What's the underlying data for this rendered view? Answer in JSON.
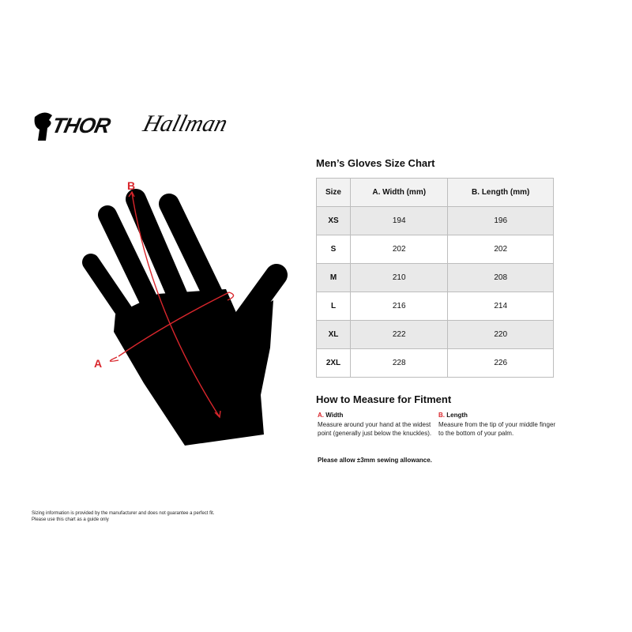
{
  "logos": {
    "brand1": "THOR",
    "brand2": "Hallman"
  },
  "diagram": {
    "label_a": "A",
    "label_b": "B",
    "accent": "#d9262c"
  },
  "chart": {
    "title": "Men’s Gloves Size Chart",
    "headers": [
      "Size",
      "A. Width (mm)",
      "B. Length (mm)"
    ],
    "rows": [
      [
        "XS",
        "194",
        "196"
      ],
      [
        "S",
        "202",
        "202"
      ],
      [
        "M",
        "210",
        "208"
      ],
      [
        "L",
        "216",
        "214"
      ],
      [
        "XL",
        "222",
        "220"
      ],
      [
        "2XL",
        "228",
        "226"
      ]
    ]
  },
  "howto": {
    "title": "How to Measure for Fitment",
    "width": {
      "letter": "A.",
      "label": "Width",
      "desc": "Measure around your hand at the widest point (generally just below the knuckles)."
    },
    "length": {
      "letter": "B.",
      "label": "Length",
      "desc": "Measure from the tip of your middle finger to the bottom of your palm."
    },
    "allowance": "Please allow ±3mm sewing allowance."
  },
  "disclaimer": {
    "line1": "Sizing information is provided by the manufacturer and does not guarantee a perfect fit.",
    "line2": "Please use this chart as a guide only"
  }
}
